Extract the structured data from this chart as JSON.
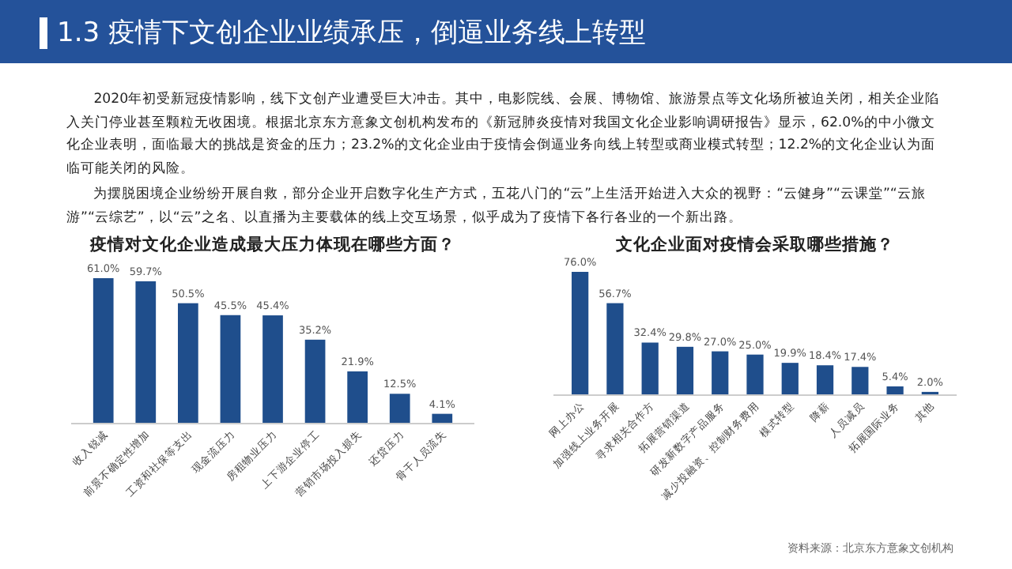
{
  "chart_data": [
    {
      "type": "other",
      "title": "1.3  疫情下文创企业业绩承压，倒逼业务线上转型",
      "annotations": [
        "2020年初受新冠疫情影响，线下文创产业遭受巨大冲击。其中，电影院线、会展、博物馆、旅游景点等文化场所被迫关闭，相关企业陷入关门停业甚至颗粒无收困境。根据北京东方意象文创机构发布的《新冠肺炎疫情对我国文化企业影响调研报告》显示，62.0%的中小微文化企业表明，面临最大的挑战是资金的压力；23.2%的文化企业由于疫情会倒逼业务向线上转型或商业模式转型；12.2%的文化企业认为面临可能关闭的风险。",
        "为摆脱困境企业纷纷开展自救，部分企业开启数字化生产方式，五花八门的“云”上生活开始进入大众的视野：“云健身”“云课堂”“云旅游”“云综艺”，以“云”之名、以直播为主要载体的线上交互场景，似乎成为了疫情下各行各业的一个新出路。"
      ]
    },
    {
      "type": "bar",
      "title": "疫情对文化企业造成最大压力体现在哪些方面？",
      "categories": [
        "收入锐减",
        "前景不确定性增加",
        "工资和社保等支出",
        "现金流压力",
        "房租物业压力",
        "上下游企业停工",
        "营销市场投入损失",
        "还贷压力",
        "骨干人员流失"
      ],
      "values": [
        61.0,
        59.7,
        50.5,
        45.5,
        45.4,
        35.2,
        21.9,
        12.5,
        4.1
      ],
      "color": "#1f4e8c",
      "value_labels": [
        "61.0%",
        "59.7%",
        "50.5%",
        "45.5%",
        "45.4%",
        "35.2%",
        "21.9%",
        "12.5%",
        "4.1%"
      ]
    },
    {
      "type": "bar",
      "title": "文化企业面对疫情会采取哪些措施？",
      "categories": [
        "网上办公",
        "加强线上业务开展",
        "寻求相关合作方",
        "拓展营销渠道",
        "研发新数字产品服务",
        "减少投融资、控制财务费用",
        "模式转型",
        "降薪",
        "人员减员",
        "拓展国际业务",
        "其他"
      ],
      "values": [
        76.0,
        56.7,
        32.4,
        29.8,
        27.0,
        25.0,
        19.9,
        18.4,
        17.4,
        5.4,
        2.0
      ],
      "color": "#1f4e8c",
      "value_labels": [
        "76.0%",
        "56.7%",
        "32.4%",
        "29.8%",
        "27.0%",
        "25.0%",
        "19.9%",
        "18.4%",
        "17.4%",
        "5.4%",
        "2.0%"
      ],
      "annotations": [
        "资料来源：北京东方意象文创机构"
      ]
    }
  ]
}
